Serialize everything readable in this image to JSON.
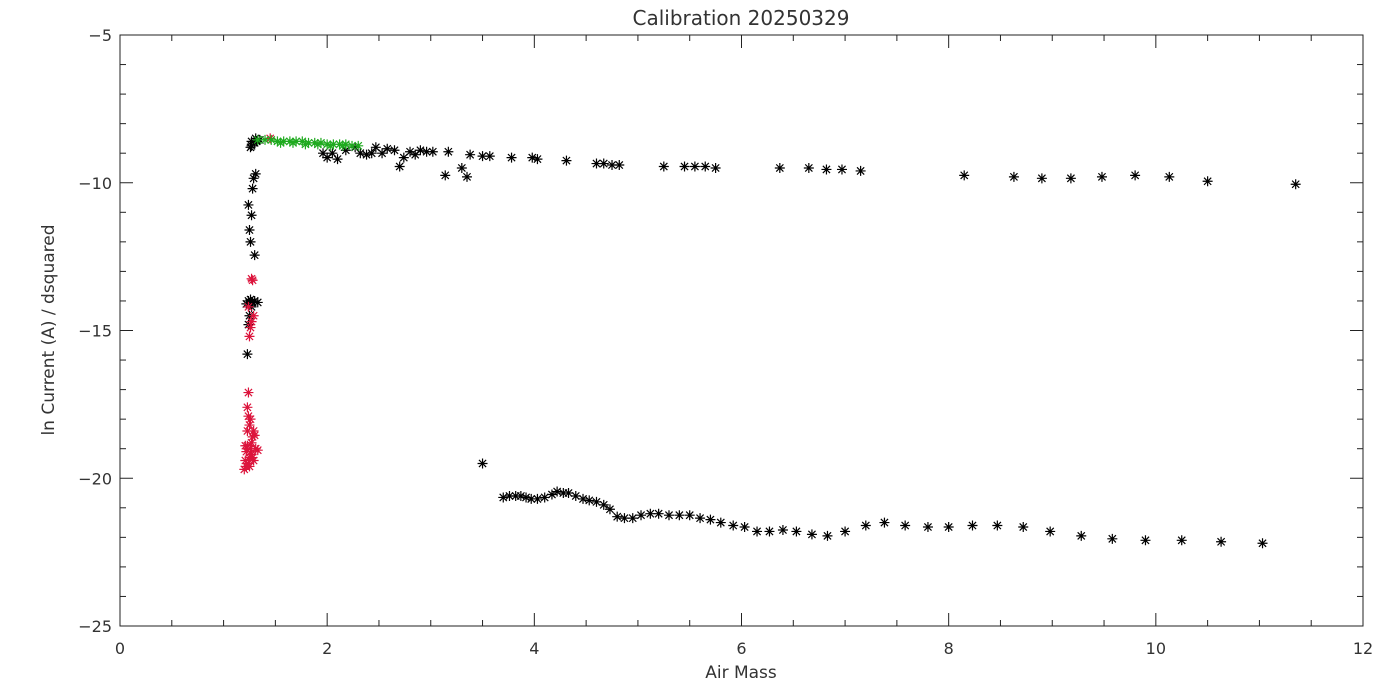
{
  "chart_data": {
    "type": "scatter",
    "title": "Calibration 20250329",
    "xlabel": "Air Mass",
    "ylabel": "ln Current (A) / dsquared",
    "xlim": [
      0,
      12
    ],
    "ylim": [
      -25,
      -5
    ],
    "x_ticks": [
      0,
      2,
      4,
      6,
      8,
      10,
      12
    ],
    "x_tick_labels": [
      "0",
      "2",
      "4",
      "6",
      "8",
      "10",
      "12"
    ],
    "y_ticks": [
      -25,
      -20,
      -15,
      -10,
      -5
    ],
    "y_tick_labels": [
      "−25",
      "−20",
      "−15",
      "−10",
      "−5"
    ],
    "grid": false,
    "marker": "asterisk",
    "series": [
      {
        "color": "#000000",
        "points": [
          [
            1.23,
            -15.8
          ],
          [
            1.24,
            -14.8
          ],
          [
            1.25,
            -14.5
          ],
          [
            1.22,
            -14.1
          ],
          [
            1.24,
            -14.0
          ],
          [
            1.26,
            -13.95
          ],
          [
            1.28,
            -14.05
          ],
          [
            1.3,
            -14.0
          ],
          [
            1.33,
            -14.05
          ],
          [
            1.27,
            -14.2
          ],
          [
            1.26,
            -12.0
          ],
          [
            1.25,
            -11.6
          ],
          [
            1.27,
            -11.1
          ],
          [
            1.24,
            -10.75
          ],
          [
            1.3,
            -12.45
          ],
          [
            1.28,
            -10.2
          ],
          [
            1.29,
            -9.85
          ],
          [
            1.31,
            -9.7
          ],
          [
            1.26,
            -8.8
          ],
          [
            1.27,
            -8.75
          ],
          [
            1.3,
            -8.65
          ],
          [
            1.32,
            -8.6
          ],
          [
            1.35,
            -8.55
          ],
          [
            1.27,
            -8.6
          ],
          [
            1.31,
            -8.5
          ],
          [
            1.96,
            -9.0
          ],
          [
            2.0,
            -9.15
          ],
          [
            2.05,
            -9.0
          ],
          [
            2.1,
            -9.2
          ],
          [
            2.18,
            -8.9
          ],
          [
            2.27,
            -8.8
          ],
          [
            2.32,
            -9.0
          ],
          [
            2.38,
            -9.05
          ],
          [
            2.43,
            -9.0
          ],
          [
            2.47,
            -8.8
          ],
          [
            2.53,
            -9.0
          ],
          [
            2.58,
            -8.85
          ],
          [
            2.65,
            -8.9
          ],
          [
            2.7,
            -9.45
          ],
          [
            2.74,
            -9.15
          ],
          [
            2.8,
            -8.95
          ],
          [
            2.85,
            -9.05
          ],
          [
            2.9,
            -8.9
          ],
          [
            2.96,
            -8.95
          ],
          [
            3.02,
            -8.95
          ],
          [
            3.14,
            -9.75
          ],
          [
            3.17,
            -8.95
          ],
          [
            3.3,
            -9.5
          ],
          [
            3.35,
            -9.8
          ],
          [
            3.38,
            -9.05
          ],
          [
            3.5,
            -9.1
          ],
          [
            3.57,
            -9.1
          ],
          [
            3.78,
            -9.15
          ],
          [
            3.98,
            -9.15
          ],
          [
            4.03,
            -9.2
          ],
          [
            4.31,
            -9.25
          ],
          [
            4.6,
            -9.35
          ],
          [
            4.67,
            -9.35
          ],
          [
            4.75,
            -9.4
          ],
          [
            4.82,
            -9.4
          ],
          [
            5.25,
            -9.45
          ],
          [
            5.45,
            -9.45
          ],
          [
            5.55,
            -9.45
          ],
          [
            5.65,
            -9.45
          ],
          [
            5.75,
            -9.5
          ],
          [
            6.37,
            -9.5
          ],
          [
            6.65,
            -9.5
          ],
          [
            6.82,
            -9.55
          ],
          [
            6.97,
            -9.55
          ],
          [
            7.15,
            -9.6
          ],
          [
            8.15,
            -9.75
          ],
          [
            8.63,
            -9.8
          ],
          [
            8.9,
            -9.85
          ],
          [
            9.18,
            -9.85
          ],
          [
            9.48,
            -9.8
          ],
          [
            9.8,
            -9.75
          ],
          [
            10.13,
            -9.8
          ],
          [
            10.5,
            -9.95
          ],
          [
            11.35,
            -10.05
          ],
          [
            3.5,
            -19.5
          ],
          [
            3.7,
            -20.65
          ],
          [
            3.76,
            -20.6
          ],
          [
            3.82,
            -20.6
          ],
          [
            3.87,
            -20.6
          ],
          [
            3.92,
            -20.65
          ],
          [
            3.97,
            -20.7
          ],
          [
            4.03,
            -20.7
          ],
          [
            4.1,
            -20.65
          ],
          [
            4.17,
            -20.55
          ],
          [
            4.22,
            -20.45
          ],
          [
            4.28,
            -20.5
          ],
          [
            4.33,
            -20.5
          ],
          [
            4.4,
            -20.6
          ],
          [
            4.47,
            -20.7
          ],
          [
            4.53,
            -20.75
          ],
          [
            4.6,
            -20.8
          ],
          [
            4.67,
            -20.9
          ],
          [
            4.73,
            -21.05
          ],
          [
            4.8,
            -21.3
          ],
          [
            4.87,
            -21.35
          ],
          [
            4.95,
            -21.35
          ],
          [
            5.03,
            -21.25
          ],
          [
            5.12,
            -21.2
          ],
          [
            5.2,
            -21.2
          ],
          [
            5.3,
            -21.25
          ],
          [
            5.4,
            -21.25
          ],
          [
            5.5,
            -21.25
          ],
          [
            5.6,
            -21.35
          ],
          [
            5.7,
            -21.4
          ],
          [
            5.8,
            -21.5
          ],
          [
            5.92,
            -21.6
          ],
          [
            6.03,
            -21.65
          ],
          [
            6.15,
            -21.8
          ],
          [
            6.27,
            -21.8
          ],
          [
            6.4,
            -21.75
          ],
          [
            6.53,
            -21.8
          ],
          [
            6.68,
            -21.9
          ],
          [
            6.83,
            -21.95
          ],
          [
            7.0,
            -21.8
          ],
          [
            7.2,
            -21.6
          ],
          [
            7.38,
            -21.5
          ],
          [
            7.58,
            -21.6
          ],
          [
            7.8,
            -21.65
          ],
          [
            8.0,
            -21.65
          ],
          [
            8.23,
            -21.6
          ],
          [
            8.47,
            -21.6
          ],
          [
            8.72,
            -21.65
          ],
          [
            8.98,
            -21.8
          ],
          [
            9.28,
            -21.95
          ],
          [
            9.58,
            -22.05
          ],
          [
            9.9,
            -22.1
          ],
          [
            10.25,
            -22.1
          ],
          [
            10.63,
            -22.15
          ],
          [
            11.03,
            -22.2
          ]
        ]
      },
      {
        "color": "#dc143c",
        "points": [
          [
            1.2,
            -19.7
          ],
          [
            1.21,
            -19.4
          ],
          [
            1.22,
            -19.1
          ],
          [
            1.23,
            -18.9
          ],
          [
            1.24,
            -19.5
          ],
          [
            1.25,
            -19.3
          ],
          [
            1.22,
            -19.6
          ],
          [
            1.26,
            -19.0
          ],
          [
            1.27,
            -18.8
          ],
          [
            1.28,
            -18.6
          ],
          [
            1.29,
            -18.4
          ],
          [
            1.3,
            -18.55
          ],
          [
            1.25,
            -18.2
          ],
          [
            1.24,
            -17.9
          ],
          [
            1.23,
            -17.6
          ],
          [
            1.24,
            -17.1
          ],
          [
            1.26,
            -18.0
          ],
          [
            1.27,
            -19.2
          ],
          [
            1.29,
            -19.4
          ],
          [
            1.31,
            -19.0
          ],
          [
            1.33,
            -19.05
          ],
          [
            1.21,
            -18.9
          ],
          [
            1.23,
            -18.4
          ],
          [
            1.25,
            -19.6
          ],
          [
            1.28,
            -19.3
          ],
          [
            1.25,
            -15.2
          ],
          [
            1.26,
            -14.9
          ],
          [
            1.27,
            -14.7
          ],
          [
            1.29,
            -14.5
          ],
          [
            1.24,
            -14.2
          ],
          [
            1.28,
            -13.3
          ],
          [
            1.27,
            -13.25
          ],
          [
            1.45,
            -8.5
          ]
        ]
      },
      {
        "color": "#1faa1f",
        "points": [
          [
            1.33,
            -8.55
          ],
          [
            1.4,
            -8.55
          ],
          [
            1.46,
            -8.55
          ],
          [
            1.52,
            -8.6
          ],
          [
            1.58,
            -8.6
          ],
          [
            1.64,
            -8.6
          ],
          [
            1.7,
            -8.6
          ],
          [
            1.76,
            -8.6
          ],
          [
            1.82,
            -8.65
          ],
          [
            1.88,
            -8.65
          ],
          [
            1.94,
            -8.65
          ],
          [
            2.0,
            -8.7
          ],
          [
            2.06,
            -8.7
          ],
          [
            2.12,
            -8.7
          ],
          [
            2.18,
            -8.7
          ],
          [
            2.24,
            -8.75
          ],
          [
            2.3,
            -8.75
          ],
          [
            1.55,
            -8.65
          ],
          [
            1.67,
            -8.65
          ],
          [
            1.79,
            -8.7
          ],
          [
            1.91,
            -8.7
          ],
          [
            2.03,
            -8.75
          ],
          [
            2.15,
            -8.75
          ]
        ]
      }
    ]
  }
}
